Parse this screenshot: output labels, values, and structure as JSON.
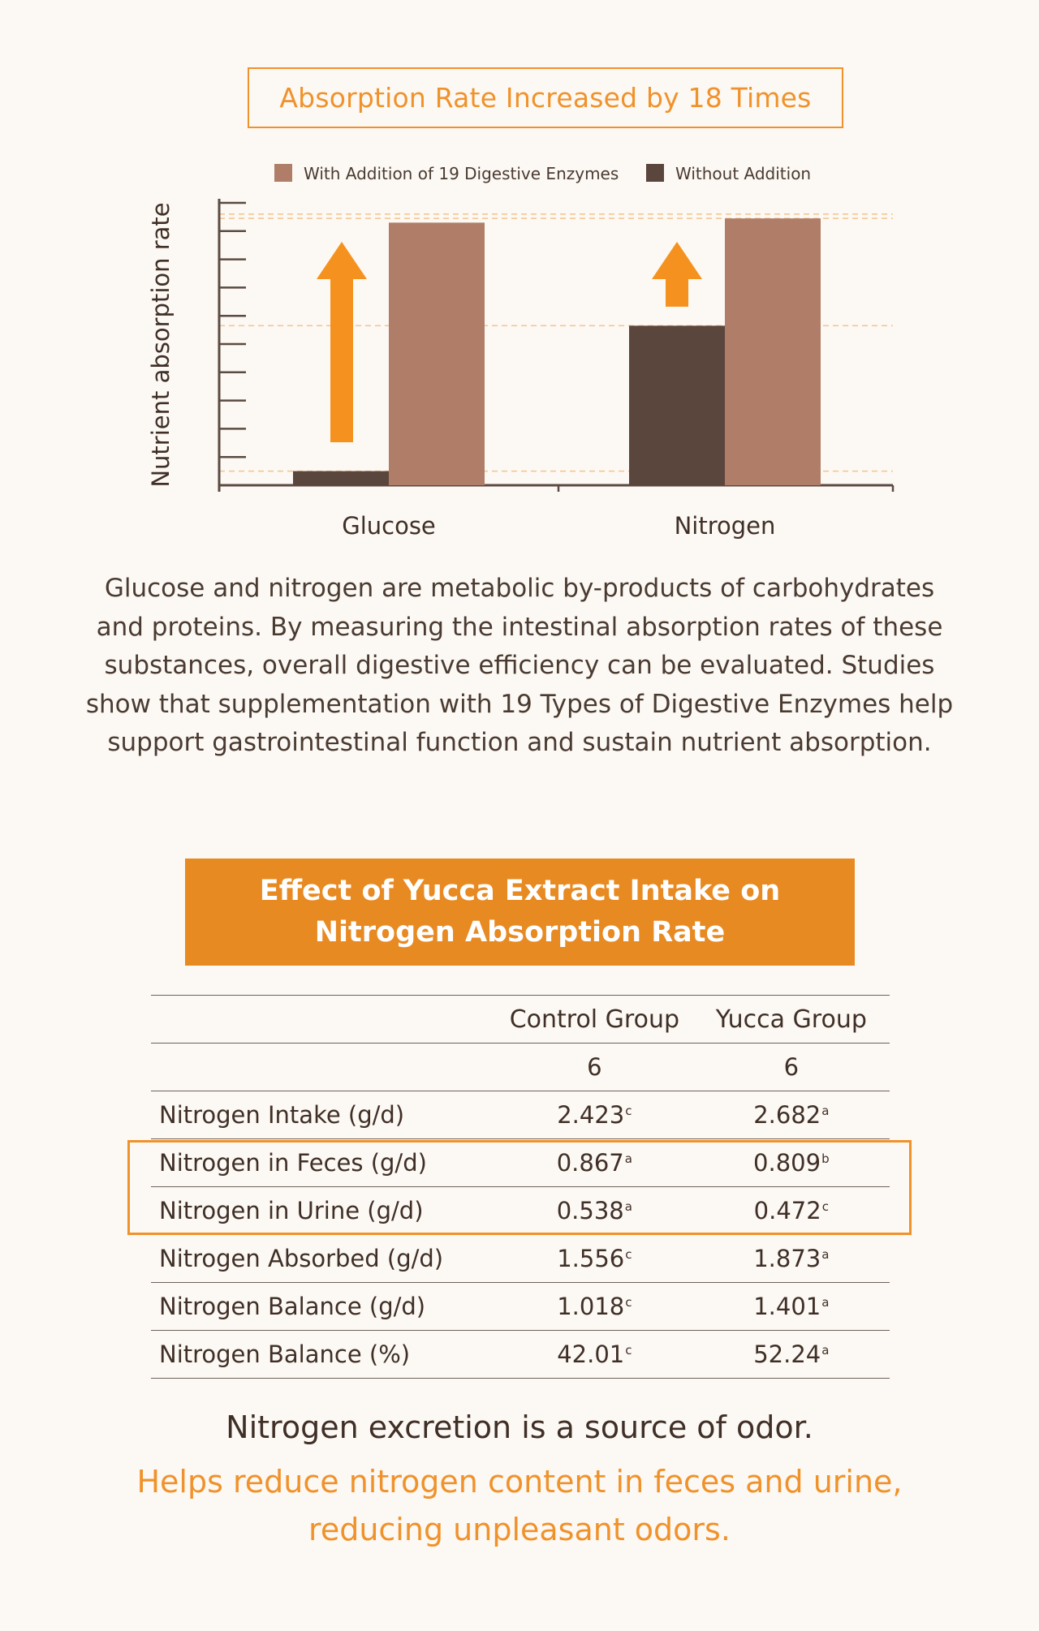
{
  "chart_data": {
    "type": "bar",
    "title": "Absorption Rate Increased by 18 Times",
    "ylabel": "Nutrient absorption rate",
    "xlabel": "",
    "categories": [
      "Glucose",
      "Nitrogen"
    ],
    "series": [
      {
        "name": "With Addition of 19 Digestive Enzymes",
        "color": "#b07e68",
        "values": [
          9.3,
          9.45
        ]
      },
      {
        "name": "Without Addition",
        "color": "#5b463d",
        "values": [
          0.5,
          5.65
        ]
      }
    ],
    "ylim": [
      0,
      10
    ],
    "y_ticks": 10,
    "legend": "top",
    "reference_lines": [
      9.6,
      9.45,
      5.65,
      0.5
    ],
    "arrow_color": "#f5921f",
    "grid": false
  },
  "description": "Glucose and nitrogen are metabolic by-products of carbohydrates and proteins. By measuring the intestinal absorption rates of these substances, overall digestive efficiency can be evaluated. Studies show that supplementation with 19 Types of Digestive Enzymes help support gastrointestinal function and sustain nutrient absorption.",
  "table": {
    "title_line1": "Effect of Yucca Extract Intake on",
    "title_line2": "Nitrogen Absorption Rate",
    "columns": [
      "",
      "Control Group",
      "Yucca Group"
    ],
    "n_row": [
      "",
      "6",
      "6"
    ],
    "rows": [
      {
        "label": "Nitrogen Intake (g/d)",
        "control": "2.423",
        "control_sup": "c",
        "yucca": "2.682",
        "yucca_sup": "a"
      },
      {
        "label": "Nitrogen in Feces (g/d)",
        "control": "0.867",
        "control_sup": "a",
        "yucca": "0.809",
        "yucca_sup": "b"
      },
      {
        "label": "Nitrogen in Urine (g/d)",
        "control": "0.538",
        "control_sup": "a",
        "yucca": "0.472",
        "yucca_sup": "c"
      },
      {
        "label": "Nitrogen Absorbed (g/d)",
        "control": "1.556",
        "control_sup": "c",
        "yucca": "1.873",
        "yucca_sup": "a"
      },
      {
        "label": "Nitrogen Balance (g/d)",
        "control": "1.018",
        "control_sup": "c",
        "yucca": "1.401",
        "yucca_sup": "a"
      },
      {
        "label": "Nitrogen Balance (%)",
        "control": "42.01",
        "control_sup": "c",
        "yucca": "52.24",
        "yucca_sup": "a"
      }
    ],
    "highlighted_rows": [
      "Nitrogen in Feces (g/d)",
      "Nitrogen in Urine (g/d)"
    ],
    "highlight_color": "#f0922b",
    "header_bg": "#e88a22"
  },
  "footer": {
    "line1": "Nitrogen excretion is a source of odor.",
    "line2": "Helps reduce nitrogen content in feces and urine,",
    "line3": "reducing unpleasant odors."
  }
}
